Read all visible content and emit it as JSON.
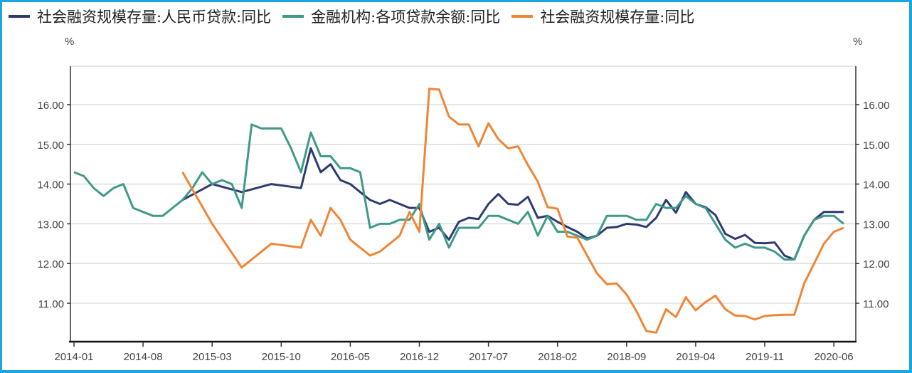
{
  "chart_data": {
    "type": "line",
    "title": "",
    "xlabel": "",
    "ylabel_left": "%",
    "ylabel_right": "%",
    "ylim": [
      10.03,
      16.97
    ],
    "y_ticks": [
      "11.00",
      "12.00",
      "13.00",
      "14.00",
      "15.00",
      "16.00"
    ],
    "x_ticks": [
      "2014-01",
      "2014-08",
      "2015-03",
      "2015-10",
      "2016-05",
      "2016-12",
      "2017-07",
      "2018-02",
      "2018-09",
      "2019-04",
      "2019-11",
      "2020-06"
    ],
    "grid": true,
    "legend_position": "top",
    "x_start": "2014-01",
    "x_end": "2020-06",
    "series": [
      {
        "name": "社会融资规模存量:人民币贷款:同比",
        "color": "#2e3a72",
        "axis": "left",
        "points": [
          [
            "2014-12",
            13.6
          ],
          [
            "2015-03",
            14.0
          ],
          [
            "2015-06",
            13.8
          ],
          [
            "2015-09",
            14.0
          ],
          [
            "2015-12",
            13.9
          ],
          [
            "2016-01",
            14.9
          ],
          [
            "2016-02",
            14.3
          ],
          [
            "2016-03",
            14.5
          ],
          [
            "2016-04",
            14.1
          ],
          [
            "2016-05",
            14.0
          ],
          [
            "2016-06",
            13.8
          ],
          [
            "2016-07",
            13.6
          ],
          [
            "2016-08",
            13.5
          ],
          [
            "2016-09",
            13.6
          ],
          [
            "2016-10",
            13.5
          ],
          [
            "2016-11",
            13.4
          ],
          [
            "2016-12",
            13.4
          ],
          [
            "2017-01",
            12.8
          ],
          [
            "2017-02",
            12.9
          ],
          [
            "2017-03",
            12.6
          ],
          [
            "2017-04",
            13.05
          ],
          [
            "2017-05",
            13.15
          ],
          [
            "2017-06",
            13.12
          ],
          [
            "2017-07",
            13.5
          ],
          [
            "2017-08",
            13.75
          ],
          [
            "2017-09",
            13.5
          ],
          [
            "2017-10",
            13.48
          ],
          [
            "2017-11",
            13.68
          ],
          [
            "2017-12",
            13.15
          ],
          [
            "2018-01",
            13.2
          ],
          [
            "2018-02",
            13.05
          ],
          [
            "2018-03",
            12.92
          ],
          [
            "2018-04",
            12.8
          ],
          [
            "2018-05",
            12.63
          ],
          [
            "2018-06",
            12.7
          ],
          [
            "2018-07",
            12.9
          ],
          [
            "2018-08",
            12.92
          ],
          [
            "2018-09",
            13.0
          ],
          [
            "2018-10",
            12.98
          ],
          [
            "2018-11",
            12.92
          ],
          [
            "2018-12",
            13.15
          ],
          [
            "2019-01",
            13.6
          ],
          [
            "2019-02",
            13.28
          ],
          [
            "2019-03",
            13.8
          ],
          [
            "2019-04",
            13.5
          ],
          [
            "2019-05",
            13.42
          ],
          [
            "2019-06",
            13.22
          ],
          [
            "2019-07",
            12.75
          ],
          [
            "2019-08",
            12.62
          ],
          [
            "2019-09",
            12.72
          ],
          [
            "2019-10",
            12.52
          ],
          [
            "2019-11",
            12.51
          ],
          [
            "2019-12",
            12.53
          ],
          [
            "2020-01",
            12.2
          ],
          [
            "2020-02",
            12.1
          ],
          [
            "2020-03",
            12.7
          ],
          [
            "2020-04",
            13.1
          ],
          [
            "2020-05",
            13.3
          ],
          [
            "2020-06",
            13.3
          ],
          [
            "2020-07",
            13.3
          ]
        ]
      },
      {
        "name": "金融机构:各项贷款余额:同比",
        "color": "#3f9a87",
        "axis": "left",
        "points": [
          [
            "2014-01",
            14.3
          ],
          [
            "2014-02",
            14.2
          ],
          [
            "2014-03",
            13.9
          ],
          [
            "2014-04",
            13.7
          ],
          [
            "2014-05",
            13.9
          ],
          [
            "2014-06",
            14.0
          ],
          [
            "2014-07",
            13.4
          ],
          [
            "2014-08",
            13.3
          ],
          [
            "2014-09",
            13.2
          ],
          [
            "2014-10",
            13.2
          ],
          [
            "2014-11",
            13.4
          ],
          [
            "2014-12",
            13.6
          ],
          [
            "2015-01",
            13.9
          ],
          [
            "2015-02",
            14.3
          ],
          [
            "2015-03",
            14.0
          ],
          [
            "2015-04",
            14.1
          ],
          [
            "2015-05",
            14.0
          ],
          [
            "2015-06",
            13.4
          ],
          [
            "2015-07",
            15.5
          ],
          [
            "2015-08",
            15.4
          ],
          [
            "2015-09",
            15.4
          ],
          [
            "2015-10",
            15.4
          ],
          [
            "2015-11",
            14.9
          ],
          [
            "2015-12",
            14.3
          ],
          [
            "2016-01",
            15.3
          ],
          [
            "2016-02",
            14.7
          ],
          [
            "2016-03",
            14.7
          ],
          [
            "2016-04",
            14.4
          ],
          [
            "2016-05",
            14.4
          ],
          [
            "2016-06",
            14.3
          ],
          [
            "2016-07",
            12.9
          ],
          [
            "2016-08",
            13.0
          ],
          [
            "2016-09",
            13.0
          ],
          [
            "2016-10",
            13.1
          ],
          [
            "2016-11",
            13.1
          ],
          [
            "2016-12",
            13.5
          ],
          [
            "2017-01",
            12.6
          ],
          [
            "2017-02",
            13.0
          ],
          [
            "2017-03",
            12.4
          ],
          [
            "2017-04",
            12.9
          ],
          [
            "2017-05",
            12.9
          ],
          [
            "2017-06",
            12.9
          ],
          [
            "2017-07",
            13.2
          ],
          [
            "2017-08",
            13.2
          ],
          [
            "2017-09",
            13.1
          ],
          [
            "2017-10",
            13.0
          ],
          [
            "2017-11",
            13.3
          ],
          [
            "2017-12",
            12.7
          ],
          [
            "2018-01",
            13.2
          ],
          [
            "2018-02",
            12.8
          ],
          [
            "2018-03",
            12.8
          ],
          [
            "2018-04",
            12.7
          ],
          [
            "2018-05",
            12.6
          ],
          [
            "2018-06",
            12.7
          ],
          [
            "2018-07",
            13.2
          ],
          [
            "2018-08",
            13.2
          ],
          [
            "2018-09",
            13.2
          ],
          [
            "2018-10",
            13.1
          ],
          [
            "2018-11",
            13.1
          ],
          [
            "2018-12",
            13.5
          ],
          [
            "2019-01",
            13.4
          ],
          [
            "2019-02",
            13.4
          ],
          [
            "2019-03",
            13.7
          ],
          [
            "2019-04",
            13.5
          ],
          [
            "2019-05",
            13.4
          ],
          [
            "2019-06",
            13.0
          ],
          [
            "2019-07",
            12.6
          ],
          [
            "2019-08",
            12.4
          ],
          [
            "2019-09",
            12.5
          ],
          [
            "2019-10",
            12.4
          ],
          [
            "2019-11",
            12.4
          ],
          [
            "2019-12",
            12.3
          ],
          [
            "2020-01",
            12.1
          ],
          [
            "2020-02",
            12.1
          ],
          [
            "2020-03",
            12.7
          ],
          [
            "2020-04",
            13.1
          ],
          [
            "2020-05",
            13.2
          ],
          [
            "2020-06",
            13.2
          ],
          [
            "2020-07",
            13.0
          ]
        ]
      },
      {
        "name": "社会融资规模存量:同比",
        "color": "#f08536",
        "axis": "right",
        "points": [
          [
            "2014-12",
            14.3
          ],
          [
            "2015-03",
            13.0
          ],
          [
            "2015-06",
            11.9
          ],
          [
            "2015-09",
            12.5
          ],
          [
            "2015-12",
            12.4
          ],
          [
            "2016-01",
            13.1
          ],
          [
            "2016-02",
            12.7
          ],
          [
            "2016-03",
            13.4
          ],
          [
            "2016-04",
            13.1
          ],
          [
            "2016-05",
            12.6
          ],
          [
            "2016-06",
            12.4
          ],
          [
            "2016-07",
            12.2
          ],
          [
            "2016-08",
            12.3
          ],
          [
            "2016-09",
            12.5
          ],
          [
            "2016-10",
            12.7
          ],
          [
            "2016-11",
            13.3
          ],
          [
            "2016-12",
            12.8
          ],
          [
            "2017-01",
            16.4
          ],
          [
            "2017-02",
            16.38
          ],
          [
            "2017-03",
            15.7
          ],
          [
            "2017-04",
            15.5
          ],
          [
            "2017-05",
            15.5
          ],
          [
            "2017-06",
            14.95
          ],
          [
            "2017-07",
            15.53
          ],
          [
            "2017-08",
            15.13
          ],
          [
            "2017-09",
            14.9
          ],
          [
            "2017-10",
            14.95
          ],
          [
            "2017-11",
            14.48
          ],
          [
            "2017-12",
            14.06
          ],
          [
            "2018-01",
            13.42
          ],
          [
            "2018-02",
            13.38
          ],
          [
            "2018-03",
            12.68
          ],
          [
            "2018-04",
            12.65
          ],
          [
            "2018-05",
            12.2
          ],
          [
            "2018-06",
            11.75
          ],
          [
            "2018-07",
            11.48
          ],
          [
            "2018-08",
            11.5
          ],
          [
            "2018-09",
            11.22
          ],
          [
            "2018-10",
            10.8
          ],
          [
            "2018-11",
            10.3
          ],
          [
            "2018-12",
            10.26
          ],
          [
            "2019-01",
            10.85
          ],
          [
            "2019-02",
            10.65
          ],
          [
            "2019-03",
            11.15
          ],
          [
            "2019-04",
            10.82
          ],
          [
            "2019-05",
            11.03
          ],
          [
            "2019-06",
            11.19
          ],
          [
            "2019-07",
            10.85
          ],
          [
            "2019-08",
            10.69
          ],
          [
            "2019-09",
            10.68
          ],
          [
            "2019-10",
            10.59
          ],
          [
            "2019-11",
            10.68
          ],
          [
            "2019-12",
            10.7
          ],
          [
            "2020-01",
            10.71
          ],
          [
            "2020-02",
            10.71
          ],
          [
            "2020-03",
            11.5
          ],
          [
            "2020-04",
            12.0
          ],
          [
            "2020-05",
            12.5
          ],
          [
            "2020-06",
            12.8
          ],
          [
            "2020-07",
            12.9
          ]
        ]
      }
    ]
  },
  "legend": {
    "items": [
      {
        "label": "社会融资规模存量:人民币贷款:同比",
        "color": "#2e3a72"
      },
      {
        "label": "金融机构:各项贷款余额:同比",
        "color": "#3f9a87"
      },
      {
        "label": "社会融资规模存量:同比",
        "color": "#f08536"
      }
    ]
  },
  "axes": {
    "left_unit": "%",
    "right_unit": "%"
  }
}
